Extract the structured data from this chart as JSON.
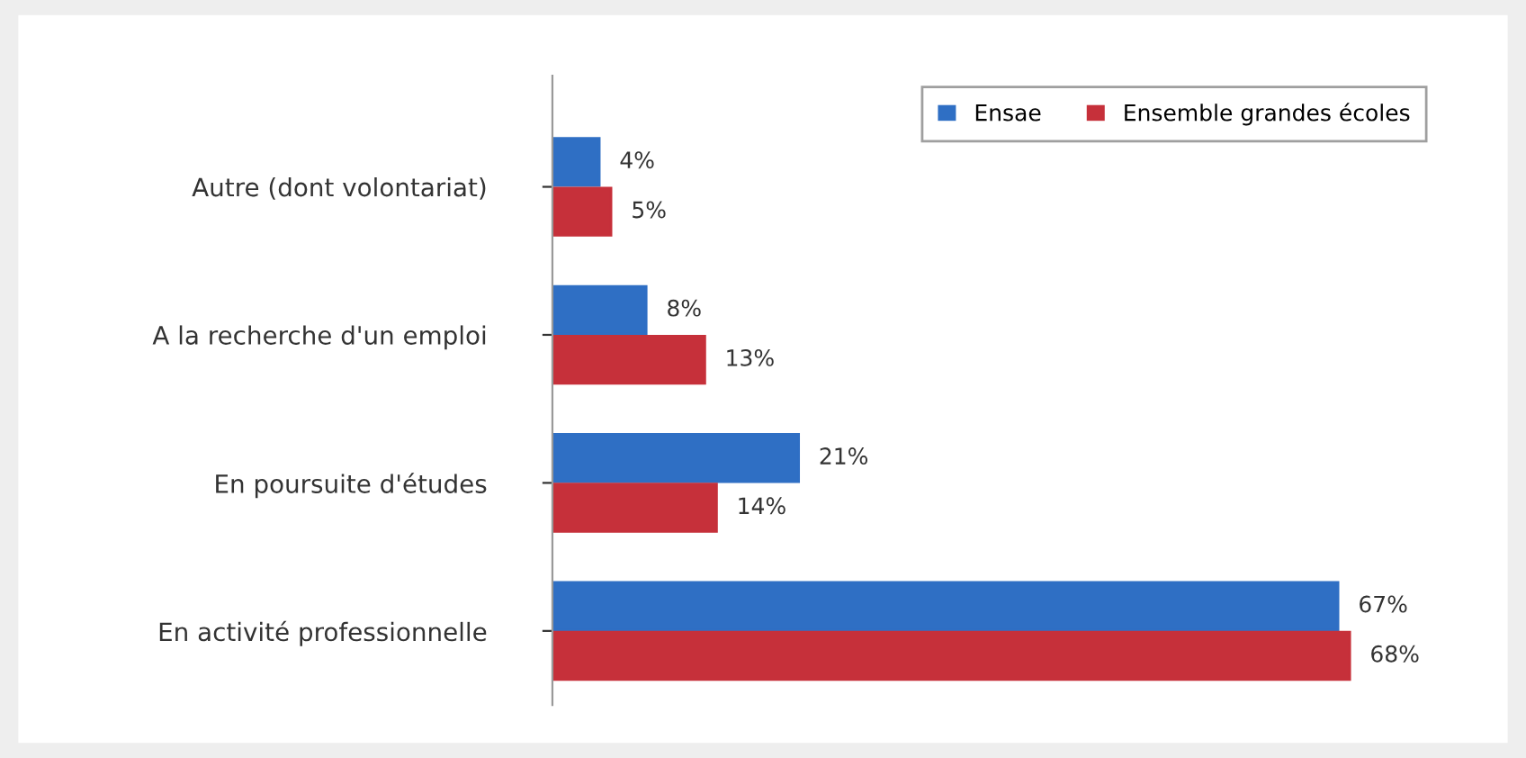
{
  "chart_data": {
    "type": "bar",
    "orientation": "horizontal",
    "categories": [
      "Autre (dont volontariat)",
      "A la recherche d'un emploi",
      "En poursuite d'études",
      "En activité professionnelle"
    ],
    "series": [
      {
        "name": "Ensae",
        "color": "#2f6fc4",
        "values": [
          4,
          8,
          21,
          67
        ],
        "value_labels": [
          "4%",
          "8%",
          "21%",
          "67%"
        ]
      },
      {
        "name": "Ensemble grandes écoles",
        "color": "#c6303a",
        "values": [
          5,
          13,
          14,
          68
        ],
        "value_labels": [
          "5%",
          "13%",
          "14%",
          "68%"
        ]
      }
    ],
    "legend": "top right",
    "grid": false
  }
}
